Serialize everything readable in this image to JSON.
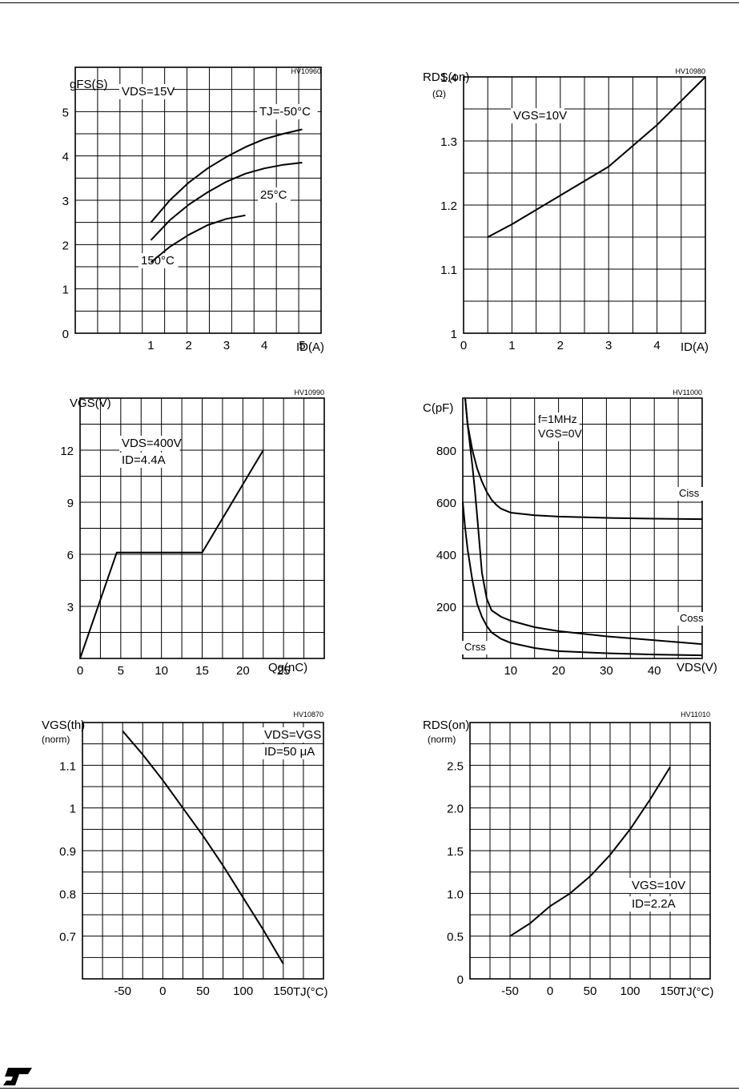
{
  "colors": {
    "ink": "#000000",
    "paper": "#ffffff"
  },
  "footer": {
    "logo_icon": "st-logo-icon"
  },
  "chart_data": [
    {
      "type": "line",
      "code": "HV10960",
      "title": "",
      "ylabel": "gFS(S)",
      "xlabel": "ID(A)",
      "xlim": [
        -1,
        5.5
      ],
      "ylim": [
        0,
        6
      ],
      "x_gridlines": 11,
      "y_gridlines": 12,
      "xticks": [
        1,
        2,
        3,
        4,
        5
      ],
      "yticks": [
        0,
        1,
        2,
        3,
        4,
        5
      ],
      "grid": true,
      "annotations": [
        "VDS=15V",
        "TJ=-50°C",
        "25°C",
        "150°C"
      ],
      "series": [
        {
          "name": "TJ=-50°C",
          "x": [
            1,
            1.5,
            2,
            2.5,
            3,
            3.5,
            4,
            4.5,
            5
          ],
          "y": [
            2.5,
            3.0,
            3.4,
            3.72,
            3.98,
            4.2,
            4.38,
            4.5,
            4.6
          ]
        },
        {
          "name": "25°C",
          "x": [
            1,
            1.5,
            2,
            2.5,
            3,
            3.5,
            4,
            4.5,
            5
          ],
          "y": [
            2.1,
            2.55,
            2.9,
            3.18,
            3.42,
            3.6,
            3.72,
            3.8,
            3.85
          ]
        },
        {
          "name": "150°C",
          "x": [
            1,
            1.5,
            2,
            2.5,
            3,
            3.5
          ],
          "y": [
            1.6,
            1.95,
            2.22,
            2.44,
            2.58,
            2.66
          ]
        }
      ]
    },
    {
      "type": "line",
      "code": "HV10980",
      "title": "",
      "ylabel": "RDS(on)",
      "ylabel2": "(Ω)",
      "xlabel": "ID(A)",
      "xlim": [
        0,
        5
      ],
      "ylim": [
        1,
        1.4
      ],
      "x_gridlines": 10,
      "y_gridlines": 8,
      "xticks": [
        0,
        1,
        2,
        3,
        4
      ],
      "yticks": [
        1,
        1.1,
        1.2,
        1.3,
        1.4
      ],
      "grid": true,
      "annotations": [
        "VGS=10V"
      ],
      "series": [
        {
          "name": "",
          "x": [
            0.5,
            1,
            2,
            3,
            4,
            5
          ],
          "y": [
            1.15,
            1.17,
            1.215,
            1.26,
            1.325,
            1.4
          ]
        }
      ]
    },
    {
      "type": "line",
      "code": "HV10990",
      "title": "",
      "ylabel": "VGS(V)",
      "xlabel": "Qg(nC)",
      "xlim": [
        0,
        30
      ],
      "ylim": [
        0,
        15
      ],
      "x_gridlines": 12,
      "y_gridlines": 10,
      "xticks": [
        0,
        5,
        10,
        15,
        20,
        25
      ],
      "yticks": [
        3,
        6,
        9,
        12
      ],
      "grid": true,
      "annotations": [
        "VDS=400V",
        "ID=4.4A"
      ],
      "series": [
        {
          "name": "",
          "x": [
            0,
            4.5,
            15,
            22.5
          ],
          "y": [
            0,
            6.1,
            6.1,
            12
          ]
        }
      ]
    },
    {
      "type": "line",
      "code": "HV11000",
      "title": "",
      "ylabel": "C(pF)",
      "xlabel": "VDS(V)",
      "xlim": [
        0,
        50
      ],
      "ylim": [
        0,
        1000
      ],
      "x_gridlines": 10,
      "y_gridlines": 10,
      "xticks": [
        10,
        20,
        30,
        40
      ],
      "yticks": [
        200,
        400,
        600,
        800
      ],
      "grid": true,
      "annotations": [
        "f=1MHz",
        "VGS=0V",
        "Ciss",
        "Coss",
        "Crss"
      ],
      "series": [
        {
          "name": "Ciss",
          "x": [
            0.5,
            1,
            2,
            3,
            4,
            5,
            6,
            7,
            8,
            10,
            15,
            20,
            30,
            40,
            50
          ],
          "y": [
            1000,
            900,
            800,
            730,
            680,
            640,
            610,
            590,
            575,
            560,
            550,
            545,
            540,
            537,
            535
          ]
        },
        {
          "name": "Coss",
          "x": [
            0.5,
            1,
            1.5,
            2,
            2.5,
            3,
            3.5,
            4,
            5,
            6,
            8,
            10,
            15,
            20,
            30,
            40,
            50
          ],
          "y": [
            1000,
            900,
            820,
            740,
            650,
            550,
            440,
            330,
            230,
            185,
            160,
            145,
            120,
            105,
            85,
            70,
            55
          ]
        },
        {
          "name": "Crss",
          "x": [
            0,
            0.5,
            1,
            1.5,
            2,
            3,
            4,
            5,
            6,
            8,
            10,
            15,
            20,
            30,
            40,
            50
          ],
          "y": [
            600,
            500,
            420,
            360,
            300,
            210,
            160,
            125,
            100,
            75,
            60,
            40,
            28,
            20,
            15,
            12
          ]
        }
      ]
    },
    {
      "type": "line",
      "code": "HV10870",
      "title": "",
      "ylabel": "VGS(th)",
      "ylabel2": "(norm)",
      "xlabel": "TJ(°C)",
      "xlim": [
        -100,
        200
      ],
      "ylim": [
        0.6,
        1.2
      ],
      "x_gridlines": 12,
      "y_gridlines": 12,
      "xticks": [
        -50,
        0,
        50,
        100,
        150
      ],
      "yticks": [
        0.7,
        0.8,
        0.9,
        1,
        1.1
      ],
      "grid": true,
      "annotations": [
        "VDS=VGS",
        "ID=50 μA"
      ],
      "series": [
        {
          "name": "",
          "x": [
            -50,
            -25,
            0,
            25,
            50,
            75,
            100,
            125,
            150
          ],
          "y": [
            1.18,
            1.125,
            1.065,
            1.0,
            0.935,
            0.865,
            0.79,
            0.715,
            0.635
          ]
        }
      ]
    },
    {
      "type": "line",
      "code": "HV11010",
      "title": "",
      "ylabel": "RDS(on)",
      "ylabel2": "(norm)",
      "xlabel": "TJ(°C)",
      "xlim": [
        -100,
        200
      ],
      "ylim": [
        0,
        3
      ],
      "x_gridlines": 12,
      "y_gridlines": 12,
      "xticks": [
        -50,
        0,
        50,
        100,
        150
      ],
      "yticks": [
        "0",
        "0.5",
        "1.0",
        "1.5",
        "2.0",
        "2.5"
      ],
      "grid": true,
      "annotations": [
        "VGS=10V",
        "ID=2.2A"
      ],
      "series": [
        {
          "name": "",
          "x": [
            -50,
            -25,
            0,
            25,
            50,
            75,
            100,
            125,
            150
          ],
          "y": [
            0.5,
            0.65,
            0.85,
            1.0,
            1.2,
            1.45,
            1.75,
            2.1,
            2.48
          ]
        }
      ]
    }
  ]
}
